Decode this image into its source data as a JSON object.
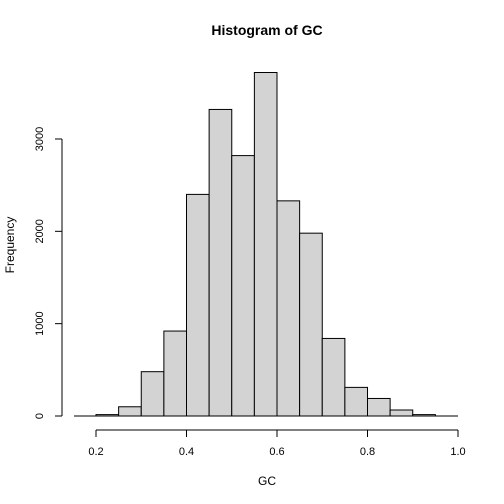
{
  "chart_data": {
    "type": "bar",
    "title": "Histogram of GC",
    "xlabel": "GC",
    "ylabel": "Frequency",
    "xlim": [
      0.15,
      1.0
    ],
    "ylim": [
      0,
      3720
    ],
    "x_ticks": [
      0.2,
      0.4,
      0.6,
      0.8,
      1.0
    ],
    "x_tick_labels": [
      "0.2",
      "0.4",
      "0.6",
      "0.8",
      "1.0"
    ],
    "y_ticks": [
      0,
      1000,
      2000,
      3000
    ],
    "y_tick_labels": [
      "0",
      "1000",
      "2000",
      "3000"
    ],
    "bin_width": 0.05,
    "bins": [
      {
        "start": 0.2,
        "end": 0.25,
        "count": 15
      },
      {
        "start": 0.25,
        "end": 0.3,
        "count": 100
      },
      {
        "start": 0.3,
        "end": 0.35,
        "count": 480
      },
      {
        "start": 0.35,
        "end": 0.4,
        "count": 920
      },
      {
        "start": 0.4,
        "end": 0.45,
        "count": 2400
      },
      {
        "start": 0.45,
        "end": 0.5,
        "count": 3320
      },
      {
        "start": 0.5,
        "end": 0.55,
        "count": 2820
      },
      {
        "start": 0.55,
        "end": 0.6,
        "count": 3720
      },
      {
        "start": 0.6,
        "end": 0.65,
        "count": 2330
      },
      {
        "start": 0.65,
        "end": 0.7,
        "count": 1980
      },
      {
        "start": 0.7,
        "end": 0.75,
        "count": 840
      },
      {
        "start": 0.75,
        "end": 0.8,
        "count": 310
      },
      {
        "start": 0.8,
        "end": 0.85,
        "count": 190
      },
      {
        "start": 0.85,
        "end": 0.9,
        "count": 65
      },
      {
        "start": 0.9,
        "end": 0.95,
        "count": 15
      }
    ],
    "grid": false,
    "legend": "none",
    "bar_color": "#d3d3d3",
    "edge_color": "#000000"
  }
}
